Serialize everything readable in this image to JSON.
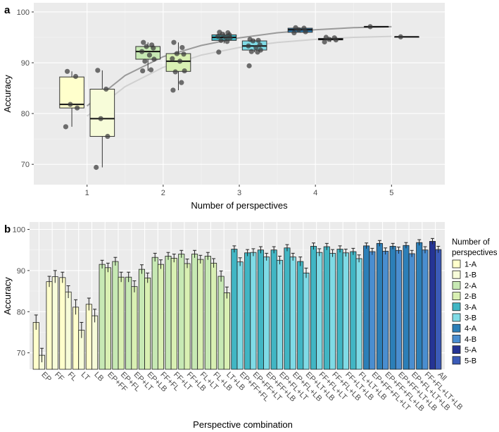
{
  "chart_data": [
    {
      "panel": "a",
      "type": "box",
      "xlabel": "Number of perspectives",
      "ylabel": "Accuracy",
      "x_ticks": [
        1,
        2,
        3,
        4,
        5
      ],
      "y_ticks": [
        70,
        80,
        90,
        100
      ],
      "ylim": [
        66,
        101.8
      ],
      "xlim": [
        0.3,
        5.7
      ],
      "colors": {
        "1-A": "#ffffcc",
        "1-B": "#f7fcd9",
        "2-A": "#c7e9b4",
        "2-B": "#d9f0b3",
        "3-A": "#41b6c4",
        "3-B": "#7fdbe6",
        "4-A": "#2c7fb8",
        "4-B": "#4a8ed0",
        "5-A": "#253494",
        "5-B": "#3b5bb8"
      },
      "boxes": [
        {
          "group": "1-A",
          "x": 0.8,
          "q1": 81.1,
          "median": 81.8,
          "q3": 87.2,
          "whisker_low": 77.4,
          "whisker_high": 88.3,
          "points": [
            88.3,
            87.3,
            81.8,
            81.1,
            77.4
          ]
        },
        {
          "group": "1-B",
          "x": 1.2,
          "q1": 75.5,
          "median": 79.0,
          "q3": 84.8,
          "whisker_low": 69.4,
          "whisker_high": 88.5,
          "points": [
            88.5,
            84.8,
            79.0,
            75.5,
            69.4
          ]
        },
        {
          "group": "2-A",
          "x": 1.8,
          "q1": 90.7,
          "median": 92.2,
          "q3": 93.2,
          "whisker_low": 88.4,
          "whisker_high": 94.0,
          "points": [
            94.0,
            93.5,
            93.2,
            92.9,
            92.2,
            91.5,
            90.7,
            90.3,
            88.6,
            88.4
          ]
        },
        {
          "group": "2-B",
          "x": 2.2,
          "q1": 88.3,
          "median": 90.3,
          "q3": 91.8,
          "whisker_low": 84.6,
          "whisker_high": 94.0,
          "points": [
            94.0,
            93.0,
            91.8,
            91.7,
            90.8,
            90.3,
            88.4,
            88.2,
            86.1,
            84.6
          ]
        },
        {
          "group": "3-A",
          "x": 2.8,
          "q1": 94.4,
          "median": 95.0,
          "q3": 95.5,
          "whisker_low": 93.8,
          "whisker_high": 96.0,
          "points": [
            96.0,
            95.9,
            95.6,
            95.5,
            95.2,
            95.0,
            94.9,
            94.4,
            94.2,
            92.1
          ]
        },
        {
          "group": "3-B",
          "x": 3.2,
          "q1": 92.5,
          "median": 93.3,
          "q3": 94.3,
          "whisker_low": 92.1,
          "whisker_high": 94.6,
          "points": [
            94.6,
            94.4,
            94.3,
            93.5,
            93.3,
            93.0,
            92.5,
            92.2,
            92.1,
            89.4
          ]
        },
        {
          "group": "4-A",
          "x": 3.8,
          "q1": 96.0,
          "median": 96.5,
          "q3": 96.8,
          "whisker_low": 95.9,
          "whisker_high": 96.9,
          "points": [
            96.9,
            96.8,
            96.5,
            96.1,
            95.9
          ]
        },
        {
          "group": "4-B",
          "x": 4.2,
          "q1": 94.5,
          "median": 94.6,
          "q3": 94.8,
          "whisker_low": 94.1,
          "whisker_high": 95.0,
          "points": [
            95.0,
            94.9,
            94.6,
            94.5,
            94.1
          ]
        },
        {
          "group": "5-A",
          "x": 4.8,
          "q1": 97.1,
          "median": 97.1,
          "q3": 97.1,
          "whisker_low": 97.1,
          "whisker_high": 97.1,
          "points": [
            97.1
          ]
        },
        {
          "group": "5-B",
          "x": 5.2,
          "q1": 95.1,
          "median": 95.1,
          "q3": 95.1,
          "whisker_low": 95.1,
          "whisker_high": 95.1,
          "points": [
            95.1
          ]
        }
      ],
      "trend_lines": [
        {
          "name": "A",
          "color": "#9a9a9a",
          "x": [
            1,
            1.5,
            2,
            2.5,
            3,
            3.5,
            4,
            4.5,
            5
          ],
          "y": [
            81.5,
            87.5,
            91.2,
            93.4,
            94.9,
            95.9,
            96.5,
            96.9,
            97.1
          ]
        },
        {
          "name": "B",
          "color": "#d0d0d0",
          "x": [
            1,
            1.5,
            2,
            2.5,
            3,
            3.5,
            4,
            4.5,
            5
          ],
          "y": [
            79.5,
            85.3,
            89.1,
            91.5,
            93.0,
            94.0,
            94.6,
            95.0,
            95.2
          ]
        }
      ]
    },
    {
      "panel": "b",
      "type": "bar",
      "xlabel": "Perspective combination",
      "ylabel": "Accuracy",
      "y_ticks": [
        70,
        80,
        90,
        100
      ],
      "ylim": [
        66,
        101.8
      ],
      "categories": [
        "EP",
        "FF",
        "FL",
        "LT",
        "LB",
        "EP+FF",
        "EP+FL",
        "EP+LT",
        "EP+LB",
        "FF+FL",
        "FF+LT",
        "FF+LB",
        "FL+LT",
        "FL+LB",
        "LT+LB",
        "EP+FF+FL",
        "EP+FF+LT",
        "EP+FF+LB",
        "EP+FL+LT",
        "EP+FL+LB",
        "EP+LT+LB",
        "FF+FL+LT",
        "FF+FL+LB",
        "FF+LT+LB",
        "FL+LT+LB",
        "EP+FF+FL+LT",
        "EP+FF+FL+LB",
        "EP+FF+LT+LB",
        "EP+FL+LT+LB",
        "FF+FL+LT+LB",
        "All"
      ],
      "category_groups": [
        "1",
        "1",
        "1",
        "1",
        "1",
        "2",
        "2",
        "2",
        "2",
        "2",
        "2",
        "2",
        "2",
        "2",
        "2",
        "3",
        "3",
        "3",
        "3",
        "3",
        "3",
        "3",
        "3",
        "3",
        "3",
        "4",
        "4",
        "4",
        "4",
        "4",
        "5"
      ],
      "series": [
        {
          "name": "A",
          "values": [
            77.4,
            87.3,
            88.3,
            81.1,
            81.8,
            91.5,
            92.2,
            88.4,
            90.3,
            93.2,
            93.5,
            94.0,
            94.0,
            93.5,
            88.6,
            95.2,
            94.3,
            95.0,
            95.0,
            95.5,
            92.2,
            95.9,
            95.8,
            95.2,
            94.6,
            96.0,
            96.6,
            95.9,
            96.1,
            96.8,
            97.1
          ],
          "errors": [
            1.8,
            1.3,
            1.3,
            1.8,
            1.5,
            1.0,
            1.0,
            1.2,
            1.1,
            1.0,
            0.9,
            0.9,
            0.9,
            0.9,
            1.3,
            0.8,
            0.8,
            0.8,
            0.8,
            0.8,
            1.1,
            0.8,
            0.8,
            0.8,
            0.8,
            0.7,
            0.7,
            0.7,
            0.7,
            0.7,
            0.7
          ]
        },
        {
          "name": "B",
          "values": [
            69.4,
            88.5,
            84.8,
            75.5,
            79.0,
            90.7,
            88.4,
            86.1,
            88.2,
            91.5,
            93.0,
            91.7,
            92.7,
            91.8,
            84.6,
            92.1,
            94.4,
            93.3,
            92.5,
            93.3,
            89.4,
            94.4,
            94.2,
            94.3,
            92.9,
            94.6,
            94.7,
            94.9,
            94.1,
            95.0,
            95.1
          ],
          "errors": [
            1.7,
            1.5,
            1.5,
            1.9,
            1.6,
            1.1,
            1.2,
            1.4,
            1.2,
            1.1,
            1.0,
            1.1,
            1.0,
            1.1,
            1.4,
            1.0,
            0.9,
            0.9,
            1.0,
            0.9,
            1.2,
            0.9,
            0.9,
            0.9,
            0.9,
            0.8,
            0.8,
            0.8,
            0.8,
            0.8,
            0.8
          ]
        }
      ],
      "legend": {
        "title": "Number of perspectives",
        "placement": "right",
        "entries": [
          "1-A",
          "1-B",
          "2-A",
          "2-B",
          "3-A",
          "3-B",
          "4-A",
          "4-B",
          "5-A",
          "5-B"
        ]
      }
    }
  ]
}
